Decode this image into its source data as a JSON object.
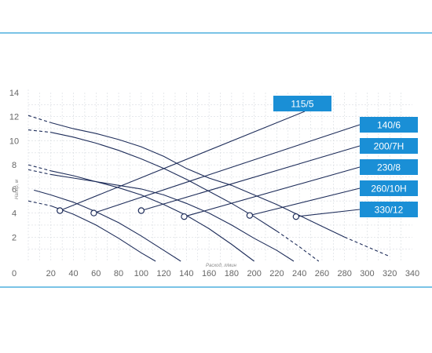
{
  "chart_data": {
    "type": "line",
    "xlabel": "Расход, л/мин",
    "ylabel": "Напор, м",
    "xlim": [
      0,
      340
    ],
    "ylim": [
      0,
      14
    ],
    "x_ticks": [
      "0",
      "20",
      "40",
      "60",
      "80",
      "100",
      "120",
      "140",
      "160",
      "180",
      "200",
      "220",
      "240",
      "260",
      "280",
      "300",
      "320",
      "340"
    ],
    "y_ticks": [
      "2",
      "4",
      "6",
      "8",
      "10",
      "12",
      "14"
    ],
    "grid": true,
    "colors": {
      "frame": "#2a9fd8",
      "curve": "#1e2d5a",
      "label_box": "#1a8fd6"
    },
    "series": [
      {
        "name": "115/5",
        "x": [
          0,
          20,
          40,
          60,
          80,
          100,
          120
        ],
        "y": [
          5.0,
          4.6,
          3.9,
          3.0,
          1.9,
          0.7,
          -0.4
        ],
        "dashed_until_x": 8,
        "point": [
          28,
          4.2
        ]
      },
      {
        "name": "140/6",
        "x": [
          5,
          20,
          40,
          60,
          80,
          100,
          120,
          140
        ],
        "y": [
          5.9,
          5.5,
          4.9,
          4.1,
          3.2,
          2.1,
          0.9,
          -0.3
        ],
        "point": [
          58,
          4.0
        ]
      },
      {
        "name": "200/7H",
        "x": [
          0,
          20,
          40,
          60,
          80,
          100,
          120,
          140,
          160,
          180,
          200
        ],
        "y": [
          8.0,
          7.5,
          7.1,
          6.6,
          6.1,
          5.5,
          4.7,
          3.8,
          2.7,
          1.4,
          0.0
        ],
        "dashed_until_x": 15,
        "point": [
          100,
          4.2
        ]
      },
      {
        "name": "230/8",
        "x": [
          0,
          20,
          40,
          60,
          80,
          100,
          120,
          140,
          160,
          180,
          200,
          220,
          240
        ],
        "y": [
          7.6,
          7.2,
          6.9,
          6.6,
          6.3,
          6.0,
          5.5,
          4.8,
          4.0,
          3.0,
          1.9,
          0.9,
          -0.3
        ],
        "dashed_until_x": 15,
        "point": [
          138,
          3.7
        ]
      },
      {
        "name": "260/10H",
        "x": [
          0,
          20,
          40,
          60,
          80,
          100,
          120,
          140,
          160,
          180,
          200,
          220,
          240,
          260
        ],
        "y": [
          10.9,
          10.7,
          10.3,
          9.8,
          9.2,
          8.5,
          7.7,
          6.8,
          5.8,
          4.8,
          3.7,
          2.5,
          1.2,
          -0.2
        ],
        "dashed_until_x": 15,
        "dashed_from_x": 230,
        "point": [
          196,
          3.8
        ]
      },
      {
        "name": "330/12",
        "x": [
          0,
          20,
          40,
          60,
          80,
          100,
          120,
          140,
          160,
          180,
          200,
          220,
          240,
          260,
          280,
          300,
          320
        ],
        "y": [
          12.1,
          11.5,
          11.0,
          10.6,
          10.1,
          9.5,
          8.7,
          7.7,
          6.9,
          6.3,
          5.5,
          4.7,
          3.8,
          2.9,
          2.0,
          1.2,
          0.4
        ],
        "dashed_until_x": 15,
        "dashed_from_x": 290,
        "point": [
          237,
          3.7
        ]
      }
    ]
  }
}
